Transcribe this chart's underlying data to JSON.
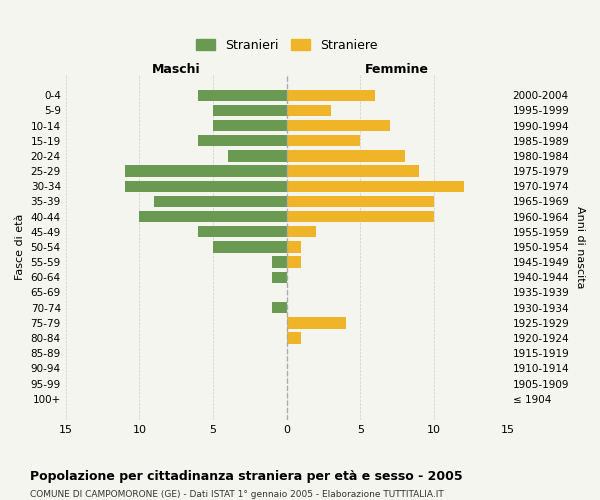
{
  "age_groups": [
    "100+",
    "95-99",
    "90-94",
    "85-89",
    "80-84",
    "75-79",
    "70-74",
    "65-69",
    "60-64",
    "55-59",
    "50-54",
    "45-49",
    "40-44",
    "35-39",
    "30-34",
    "25-29",
    "20-24",
    "15-19",
    "10-14",
    "5-9",
    "0-4"
  ],
  "birth_years": [
    "≤ 1904",
    "1905-1909",
    "1910-1914",
    "1915-1919",
    "1920-1924",
    "1925-1929",
    "1930-1934",
    "1935-1939",
    "1940-1944",
    "1945-1949",
    "1950-1954",
    "1955-1959",
    "1960-1964",
    "1965-1969",
    "1970-1974",
    "1975-1979",
    "1980-1984",
    "1985-1989",
    "1990-1994",
    "1995-1999",
    "2000-2004"
  ],
  "maschi": [
    0,
    0,
    0,
    0,
    0,
    0,
    1,
    0,
    1,
    1,
    5,
    6,
    10,
    9,
    11,
    11,
    4,
    6,
    5,
    5,
    6
  ],
  "femmine": [
    0,
    0,
    0,
    0,
    1,
    4,
    0,
    0,
    0,
    1,
    1,
    2,
    10,
    10,
    12,
    9,
    8,
    5,
    7,
    3,
    6
  ],
  "maschi_color": "#6a9a52",
  "femmine_color": "#f0b429",
  "title": "Popolazione per cittadinanza straniera per età e sesso - 2005",
  "subtitle": "COMUNE DI CAMPOMORONE (GE) - Dati ISTAT 1° gennaio 2005 - Elaborazione TUTTITALIA.IT",
  "xlabel_left": "Maschi",
  "xlabel_right": "Femmine",
  "ylabel_left": "Fasce di età",
  "ylabel_right": "Anni di nascita",
  "legend_stranieri": "Stranieri",
  "legend_straniere": "Straniere",
  "xlim": 15,
  "background_color": "#f5f5f0",
  "grid_color": "#cccccc"
}
